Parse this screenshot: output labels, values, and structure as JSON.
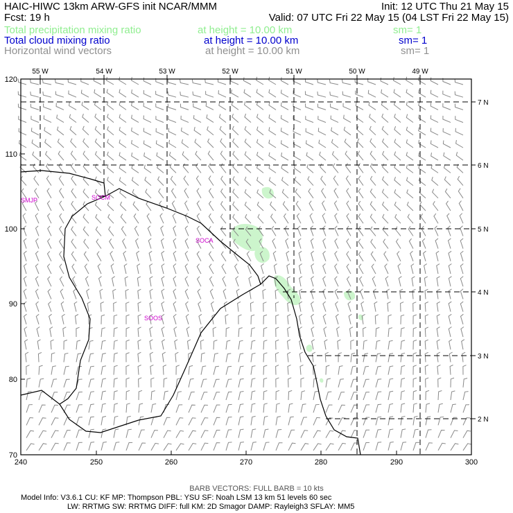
{
  "header": {
    "title_left": "HAIC-HIWC 13km ARW-GFS init   NCAR/MMM",
    "init": "Init: 12 UTC Thu 21 May 15",
    "fcst": "Fcst:    19 h",
    "valid": "Valid: 07 UTC Fri 22 May 15 (04 LST Fri 22 May 15)",
    "field1": {
      "name": "Total precipitation mixing ratio",
      "height": "at height = 10.00 km",
      "sm": "sm= 1",
      "color": "#90ee90"
    },
    "field2": {
      "name": "Total cloud mixing ratio",
      "height": "at height = 10.00 km",
      "sm": "sm= 1",
      "color": "#0000cd"
    },
    "field3": {
      "name": "Horizontal wind vectors",
      "height": "at height = 10.00 km",
      "sm": "sm= 1",
      "color": "#909090"
    }
  },
  "map": {
    "top_lon_labels": [
      "55 W",
      "54 W",
      "53 W",
      "52 W",
      "51 W",
      "50 W",
      "49 W"
    ],
    "right_lat_labels": [
      "7 N",
      "6 N",
      "5 N",
      "4 N",
      "3 N",
      "2 N"
    ],
    "left_y_ticks": [
      "120",
      "110",
      "100",
      "90",
      "80",
      "70"
    ],
    "bottom_x_ticks": [
      "240",
      "250",
      "260",
      "270",
      "280",
      "290",
      "300"
    ],
    "stations": [
      "SMJP",
      "SOCM",
      "SOCA",
      "SOOS"
    ],
    "station_color": "#cc00cc",
    "barb_color": "#888888",
    "precip_color": "#ccf5cc"
  },
  "footer": {
    "barb_note": "BARB VECTORS:  FULL BARB = 10 kts",
    "line1": "Model Info: V3.6.1     CU: KF         MP: Thompson     PBL: YSU       SF: Noah LSM      13 km    51 levels    60 sec",
    "line2": "LW: RRTMG    SW: RRTMG  DIFF: full    KM: 2D Smagor DAMP: Rayleigh3  SFLAY: MM5"
  }
}
